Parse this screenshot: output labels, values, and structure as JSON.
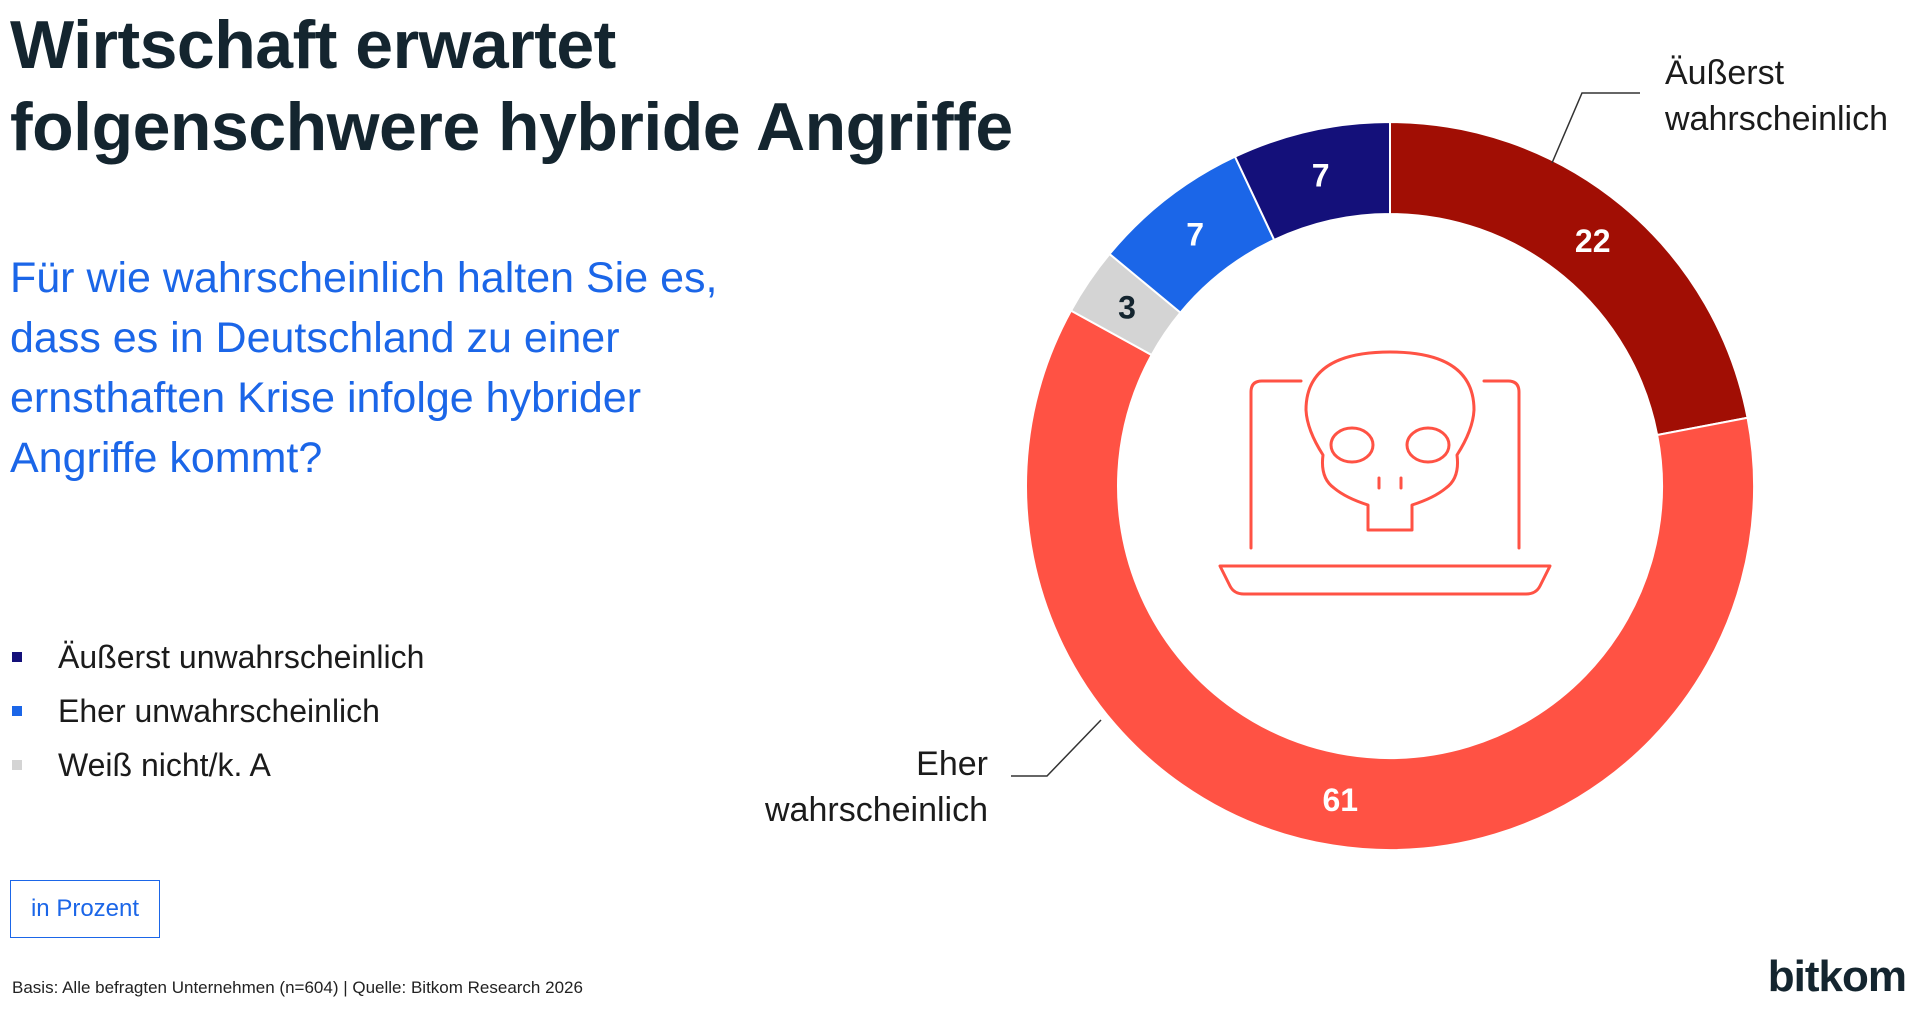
{
  "title": {
    "line1": "Wirtschaft erwartet",
    "line2": "folgenschwere hybride Angriffe"
  },
  "question": {
    "line1": "Für wie wahrscheinlich halten Sie es,",
    "line2": "dass es in Deutschland zu einer",
    "line3": "ernsthaften Krise infolge hybrider",
    "line4": "Angriffe kommt?"
  },
  "legend": [
    {
      "label": "Äußerst unwahrscheinlich",
      "color": "#14107a"
    },
    {
      "label": "Eher unwahrscheinlich",
      "color": "#1b66e8"
    },
    {
      "label": "Weiß nicht/k. A",
      "color": "#d4d4d4"
    }
  ],
  "unit_label": "in Prozent",
  "footnote": "Basis: Alle befragten Unternehmen (n=604) | Quelle: Bitkom Research 2026",
  "logo_text": "bitkom",
  "icon": "laptop-skull-icon",
  "chart_data": {
    "type": "pie",
    "subtype": "donut",
    "unit": "Prozent",
    "slices": [
      {
        "category": "Äußerst wahrscheinlich",
        "value": 22,
        "color": "#a10e04",
        "label_color": "#ffffff",
        "callout": [
          "Äußerst",
          "wahrscheinlich"
        ]
      },
      {
        "category": "Eher wahrscheinlich",
        "value": 61,
        "color": "#ff5244",
        "label_color": "#ffffff",
        "callout": [
          "Eher",
          "wahrscheinlich"
        ]
      },
      {
        "category": "Weiß nicht/k. A",
        "value": 3,
        "color": "#d4d4d4",
        "label_color": "#14252f"
      },
      {
        "category": "Eher unwahrscheinlich",
        "value": 7,
        "color": "#1b66e8",
        "label_color": "#ffffff"
      },
      {
        "category": "Äußerst unwahrscheinlich",
        "value": 7,
        "color": "#14107a",
        "label_color": "#ffffff"
      }
    ]
  }
}
